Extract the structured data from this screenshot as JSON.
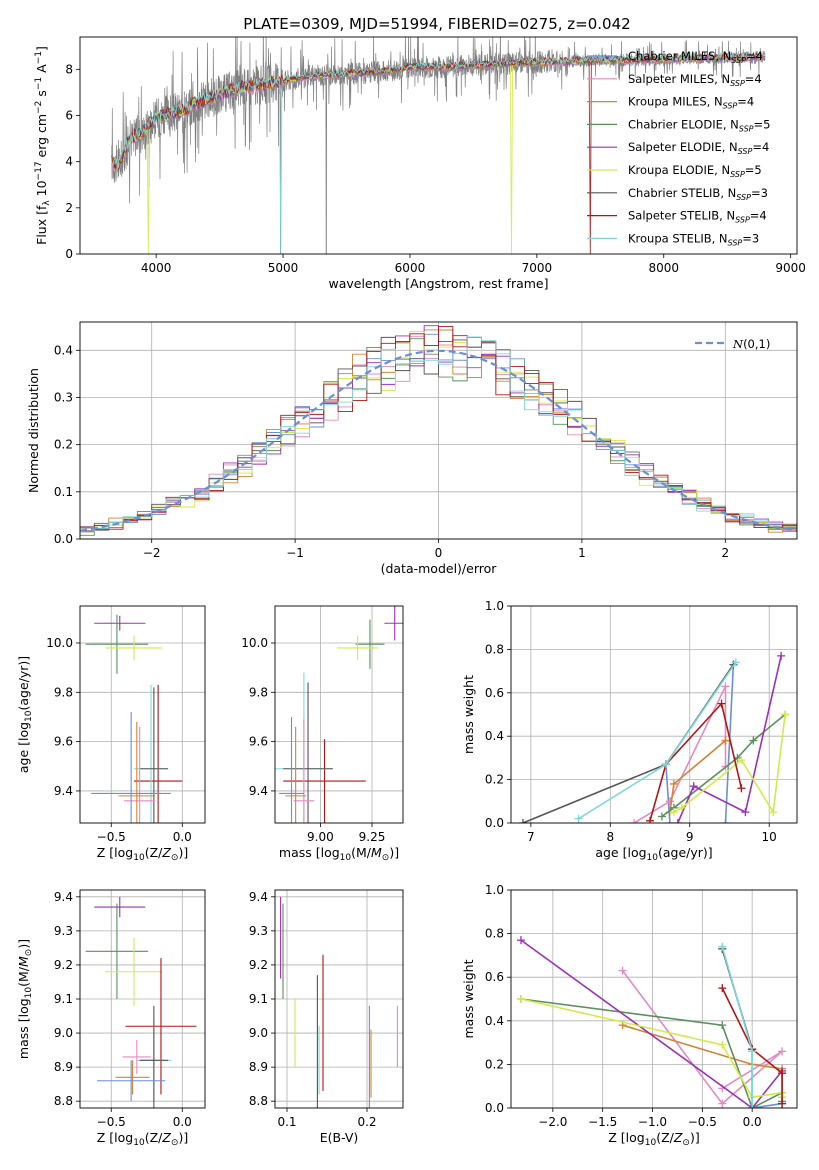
{
  "title": "PLATE=0309, MJD=51994, FIBERID=0275, z=0.042",
  "chart_data": [
    {
      "type": "line",
      "name": "spectrum",
      "xlabel": "wavelength [Angstrom, rest frame]",
      "ylabel": "Flux [f_λ 10^-17 erg cm^-2 s^-1 A^-1]",
      "xlim": [
        3400,
        9050
      ],
      "ylim": [
        0,
        9.4
      ],
      "xticks": [
        4000,
        5000,
        6000,
        7000,
        8000,
        9000
      ],
      "yticks": [
        0,
        2,
        4,
        6,
        8
      ],
      "grid": false,
      "legend_position": "top-right",
      "legend": [
        {
          "label": "Chabrier MILES, N_SSP=4",
          "color": "#6a8fd6"
        },
        {
          "label": "Salpeter MILES, N_SSP=4",
          "color": "#e38ac2"
        },
        {
          "label": "Kroupa MILES, N_SSP=4",
          "color": "#d48234"
        },
        {
          "label": "Chabrier ELODIE, N_SSP=5",
          "color": "#5c8f5e"
        },
        {
          "label": "Salpeter ELODIE, N_SSP=4",
          "color": "#9b30b8"
        },
        {
          "label": "Kroupa ELODIE, N_SSP=5",
          "color": "#d2ea4a"
        },
        {
          "label": "Chabrier STELIB, N_SSP=3",
          "color": "#555555"
        },
        {
          "label": "Salpeter STELIB, N_SSP=4",
          "color": "#b01515"
        },
        {
          "label": "Kroupa STELIB, N_SSP=3",
          "color": "#7fd8d8"
        }
      ],
      "data_color": "#808080",
      "continuum": [
        [
          3650,
          4.0
        ],
        [
          3700,
          3.8
        ],
        [
          3800,
          5.0
        ],
        [
          3900,
          5.3
        ],
        [
          4000,
          5.9
        ],
        [
          4200,
          6.2
        ],
        [
          4400,
          6.7
        ],
        [
          4600,
          7.1
        ],
        [
          4800,
          7.3
        ],
        [
          5000,
          7.5
        ],
        [
          5200,
          7.7
        ],
        [
          5500,
          7.8
        ],
        [
          5800,
          7.9
        ],
        [
          6000,
          8.1
        ],
        [
          6300,
          8.1
        ],
        [
          6600,
          8.2
        ],
        [
          7000,
          8.3
        ],
        [
          7300,
          8.35
        ],
        [
          7500,
          8.4
        ],
        [
          7800,
          8.4
        ],
        [
          8100,
          8.45
        ],
        [
          8400,
          8.5
        ],
        [
          8600,
          8.5
        ],
        [
          8800,
          8.55
        ]
      ],
      "model_drops": [
        {
          "x": 3940,
          "y": 0.0,
          "series": "Kroupa ELODIE, N_SSP=5"
        },
        {
          "x": 4980,
          "y": 0.0,
          "series": "Kroupa STELIB, N_SSP=3"
        },
        {
          "x": 6800,
          "y": 0.0,
          "series": "Kroupa ELODIE, N_SSP=5"
        },
        {
          "x": 7420,
          "y": 0.0,
          "series": "Salpeter STELIB, N_SSP=4"
        }
      ],
      "data_drops": [
        {
          "x": 4980,
          "y": 0.0
        },
        {
          "x": 5340,
          "y": 0.0
        }
      ]
    },
    {
      "type": "line",
      "name": "residuals",
      "xlabel": "(data-model)/error",
      "ylabel": "Normed distribution",
      "xlim": [
        -2.5,
        2.5
      ],
      "ylim": [
        0,
        0.46
      ],
      "xticks": [
        -2,
        -1,
        0,
        1,
        2
      ],
      "yticks": [
        0.0,
        0.1,
        0.2,
        0.3,
        0.4
      ],
      "grid": true,
      "legend_position": "top-right",
      "legend": [
        {
          "label": "N(0,1)",
          "color": "#6a8fd6"
        }
      ],
      "histogram_bins": 50
    },
    {
      "type": "scatter",
      "name": "age-vs-Z",
      "xlabel": "Z [log10(Z/Z⊙)]",
      "ylabel": "age [log10(age/yr)]",
      "xlim": [
        -0.72,
        0.16
      ],
      "ylim": [
        9.27,
        10.15
      ],
      "xticks": [
        -0.5,
        0.0
      ],
      "yticks": [
        9.4,
        9.6,
        9.8,
        10.0
      ],
      "grid": true,
      "points": [
        {
          "x": -0.44,
          "y": 10.08,
          "xerr": 0.18,
          "yerr": 0.03,
          "series": "Salpeter ELODIE, N_SSP=4"
        },
        {
          "x": -0.46,
          "y": 9.995,
          "xerr": 0.22,
          "yerr": 0.12,
          "series": "Chabrier ELODIE, N_SSP=5"
        },
        {
          "x": -0.34,
          "y": 9.98,
          "xerr": 0.2,
          "yerr": 0.05,
          "series": "Kroupa ELODIE, N_SSP=5"
        },
        {
          "x": -0.17,
          "y": 9.44,
          "xerr": 0.17,
          "yerr": 0.39,
          "series": "Salpeter STELIB, N_SSP=4"
        },
        {
          "x": -0.22,
          "y": 9.49,
          "xerr": 0.12,
          "yerr": 0.34,
          "series": "Kroupa STELIB, N_SSP=3"
        },
        {
          "x": -0.2,
          "y": 9.49,
          "xerr": 0.1,
          "yerr": 0.33,
          "series": "Chabrier STELIB, N_SSP=3"
        },
        {
          "x": -0.3,
          "y": 9.36,
          "xerr": 0.11,
          "yerr": 0.3,
          "series": "Salpeter MILES, N_SSP=4"
        },
        {
          "x": -0.32,
          "y": 9.38,
          "xerr": 0.13,
          "yerr": 0.3,
          "series": "Kroupa MILES, N_SSP=4"
        },
        {
          "x": -0.36,
          "y": 9.39,
          "xerr": 0.28,
          "yerr": 0.33,
          "series": "Chabrier MILES, N_SSP=4"
        }
      ]
    },
    {
      "type": "scatter",
      "name": "age-vs-mass",
      "xlabel": "mass [log10(M/M⊙)]",
      "ylabel": "",
      "xlim": [
        8.78,
        9.4
      ],
      "ylim": [
        9.27,
        10.15
      ],
      "xticks": [
        9.0,
        9.25
      ],
      "yticks": [
        9.4,
        9.6,
        9.8,
        10.0
      ],
      "grid": true,
      "points": [
        {
          "x": 9.36,
          "y": 10.08,
          "xerr": 0.05,
          "yerr": 0.07,
          "series": "Salpeter ELODIE, N_SSP=4"
        },
        {
          "x": 9.24,
          "y": 9.995,
          "xerr": 0.07,
          "yerr": 0.1,
          "series": "Chabrier ELODIE, N_SSP=5"
        },
        {
          "x": 9.18,
          "y": 9.98,
          "xerr": 0.1,
          "yerr": 0.05,
          "series": "Kroupa ELODIE, N_SSP=5"
        },
        {
          "x": 9.02,
          "y": 9.44,
          "xerr": 0.2,
          "yerr": 0.17,
          "series": "Salpeter STELIB, N_SSP=4"
        },
        {
          "x": 8.92,
          "y": 9.49,
          "xerr": 0.14,
          "yerr": 0.39,
          "series": "Kroupa STELIB, N_SSP=3"
        },
        {
          "x": 8.94,
          "y": 9.49,
          "xerr": 0.12,
          "yerr": 0.35,
          "series": "Chabrier STELIB, N_SSP=3"
        },
        {
          "x": 8.92,
          "y": 9.36,
          "xerr": 0.05,
          "yerr": 0.33,
          "series": "Salpeter MILES, N_SSP=4"
        },
        {
          "x": 8.88,
          "y": 9.38,
          "xerr": 0.05,
          "yerr": 0.28,
          "series": "Kroupa MILES, N_SSP=4"
        },
        {
          "x": 8.86,
          "y": 9.39,
          "xerr": 0.06,
          "yerr": 0.31,
          "series": "Chabrier MILES, N_SSP=4"
        }
      ]
    },
    {
      "type": "line",
      "name": "mass-weight-vs-age",
      "xlabel": "age [log10(age/yr)]",
      "ylabel": "mass weight",
      "xlim": [
        6.75,
        10.35
      ],
      "ylim": [
        0,
        1.0
      ],
      "xticks": [
        7,
        8,
        9,
        10
      ],
      "yticks": [
        0.0,
        0.2,
        0.4,
        0.6,
        0.8,
        1.0
      ],
      "grid": true,
      "series": [
        {
          "name": "Chabrier MILES, N_SSP=4",
          "color": "#6a8fd6",
          "x": [
            8.75,
            8.7,
            9.55,
            9.45
          ],
          "y": [
            0.0,
            0.27,
            0.73,
            0.0
          ]
        },
        {
          "name": "Salpeter MILES, N_SSP=4",
          "color": "#e38ac2",
          "x": [
            8.3,
            8.75,
            9.45,
            9.45
          ],
          "y": [
            0.0,
            0.1,
            0.63,
            0.26
          ]
        },
        {
          "name": "Kroupa MILES, N_SSP=4",
          "color": "#d48234",
          "x": [
            8.75,
            8.8,
            9.45,
            9.45
          ],
          "y": [
            0.05,
            0.18,
            0.38,
            0.38
          ]
        },
        {
          "name": "Chabrier ELODIE, N_SSP=5",
          "color": "#5c8f5e",
          "x": [
            8.65,
            8.8,
            9.6,
            9.8,
            10.2
          ],
          "y": [
            0.03,
            0.07,
            0.3,
            0.38,
            0.5
          ]
        },
        {
          "name": "Salpeter ELODIE, N_SSP=4",
          "color": "#9b30b8",
          "x": [
            8.85,
            9.05,
            9.7,
            10.15
          ],
          "y": [
            0.0,
            0.17,
            0.05,
            0.77
          ]
        },
        {
          "name": "Kroupa ELODIE, N_SSP=5",
          "color": "#d2ea4a",
          "x": [
            8.8,
            8.9,
            9.65,
            10.05,
            10.2
          ],
          "y": [
            0.05,
            0.07,
            0.29,
            0.05,
            0.5
          ]
        },
        {
          "name": "Chabrier STELIB, N_SSP=3",
          "color": "#555555",
          "x": [
            6.9,
            8.7,
            9.55
          ],
          "y": [
            0.0,
            0.27,
            0.73
          ]
        },
        {
          "name": "Salpeter STELIB, N_SSP=4",
          "color": "#b01515",
          "x": [
            8.5,
            8.7,
            9.4,
            9.65
          ],
          "y": [
            0.01,
            0.27,
            0.55,
            0.16
          ]
        },
        {
          "name": "Kroupa STELIB, N_SSP=3",
          "color": "#7fd8d8",
          "x": [
            7.6,
            8.7,
            9.58
          ],
          "y": [
            0.02,
            0.27,
            0.74
          ]
        }
      ]
    },
    {
      "type": "scatter",
      "name": "mass-vs-Z",
      "xlabel": "Z [log10(Z/Z⊙)]",
      "ylabel": "mass [log10(M/M⊙)]",
      "xlim": [
        -0.72,
        0.16
      ],
      "ylim": [
        8.78,
        9.42
      ],
      "xticks": [
        -0.5,
        0.0
      ],
      "yticks": [
        8.8,
        8.9,
        9.0,
        9.1,
        9.2,
        9.3,
        9.4
      ],
      "grid": true,
      "points": [
        {
          "x": -0.44,
          "y": 9.37,
          "xerr": 0.18,
          "yerr": 0.03,
          "series": "Salpeter ELODIE, N_SSP=4"
        },
        {
          "x": -0.46,
          "y": 9.24,
          "xerr": 0.22,
          "yerr": 0.14,
          "series": "Chabrier ELODIE, N_SSP=5"
        },
        {
          "x": -0.34,
          "y": 9.18,
          "xerr": 0.2,
          "yerr": 0.1,
          "series": "Kroupa ELODIE, N_SSP=5"
        },
        {
          "x": -0.15,
          "y": 9.02,
          "xerr": 0.25,
          "yerr": 0.2,
          "series": "Salpeter STELIB, N_SSP=4"
        },
        {
          "x": -0.2,
          "y": 8.92,
          "xerr": 0.12,
          "yerr": 0.12,
          "series": "Kroupa STELIB, N_SSP=3"
        },
        {
          "x": -0.2,
          "y": 8.92,
          "xerr": 0.1,
          "yerr": 0.16,
          "series": "Chabrier STELIB, N_SSP=3"
        },
        {
          "x": -0.32,
          "y": 8.93,
          "xerr": 0.1,
          "yerr": 0.05,
          "series": "Salpeter MILES, N_SSP=4"
        },
        {
          "x": -0.35,
          "y": 8.87,
          "xerr": 0.12,
          "yerr": 0.05,
          "series": "Kroupa MILES, N_SSP=4"
        },
        {
          "x": -0.36,
          "y": 8.86,
          "xerr": 0.24,
          "yerr": 0.06,
          "series": "Chabrier MILES, N_SSP=4"
        }
      ]
    },
    {
      "type": "scatter",
      "name": "mass-vs-EBV",
      "xlabel": "E(B-V)",
      "ylabel": "",
      "xlim": [
        0.085,
        0.245
      ],
      "ylim": [
        8.78,
        9.42
      ],
      "xticks": [
        0.1,
        0.2
      ],
      "yticks": [
        8.8,
        8.9,
        9.0,
        9.1,
        9.2,
        9.3,
        9.4
      ],
      "grid": true,
      "points": [
        {
          "x": 0.092,
          "y": 9.28,
          "xerr": 0,
          "yerr": 0.12,
          "series": "Salpeter ELODIE, N_SSP=4"
        },
        {
          "x": 0.095,
          "y": 9.24,
          "xerr": 0,
          "yerr": 0.14,
          "series": "Chabrier ELODIE, N_SSP=5"
        },
        {
          "x": 0.11,
          "y": 9.0,
          "xerr": 0,
          "yerr": 0.1,
          "series": "Kroupa ELODIE, N_SSP=5"
        },
        {
          "x": 0.145,
          "y": 9.03,
          "xerr": 0,
          "yerr": 0.2,
          "series": "Salpeter STELIB, N_SSP=4"
        },
        {
          "x": 0.14,
          "y": 8.92,
          "xerr": 0,
          "yerr": 0.1,
          "series": "Kroupa STELIB, N_SSP=3"
        },
        {
          "x": 0.138,
          "y": 8.97,
          "xerr": 0,
          "yerr": 0.2,
          "series": "Chabrier STELIB, N_SSP=3"
        },
        {
          "x": 0.238,
          "y": 8.99,
          "xerr": 0,
          "yerr": 0.09,
          "series": "Salpeter MILES, N_SSP=4"
        },
        {
          "x": 0.205,
          "y": 8.91,
          "xerr": 0,
          "yerr": 0.1,
          "series": "Kroupa MILES, N_SSP=4"
        },
        {
          "x": 0.203,
          "y": 8.93,
          "xerr": 0,
          "yerr": 0.15,
          "series": "Chabrier MILES, N_SSP=4"
        }
      ]
    },
    {
      "type": "line",
      "name": "mass-weight-vs-Z",
      "xlabel": "Z [log10(Z/Z⊙)]",
      "ylabel": "mass weight",
      "xlim": [
        -2.42,
        0.45
      ],
      "ylim": [
        0,
        1.0
      ],
      "xticks": [
        -2.0,
        -1.5,
        -1.0,
        -0.5,
        0.0
      ],
      "yticks": [
        0.0,
        0.2,
        0.4,
        0.6,
        0.8,
        1.0
      ],
      "grid": true,
      "series": [
        {
          "name": "Chabrier MILES, N_SSP=4",
          "color": "#6a8fd6",
          "x": [
            -0.3,
            0.0,
            0.0,
            0.3
          ],
          "y": [
            0.73,
            0.27,
            0.0,
            0.02
          ]
        },
        {
          "name": "Salpeter MILES, N_SSP=4",
          "color": "#e38ac2",
          "x": [
            -1.3,
            -0.3,
            0.3,
            -0.3
          ],
          "y": [
            0.63,
            0.02,
            0.26,
            0.09
          ]
        },
        {
          "name": "Kroupa MILES, N_SSP=4",
          "color": "#d48234",
          "x": [
            -1.3,
            0.0,
            0.3,
            0.3
          ],
          "y": [
            0.38,
            0.2,
            0.18,
            0.05
          ]
        },
        {
          "name": "Chabrier ELODIE, N_SSP=5",
          "color": "#5c8f5e",
          "x": [
            -2.32,
            -0.3,
            0.0,
            0.3,
            0.3
          ],
          "y": [
            0.5,
            0.38,
            0.0,
            0.07,
            0.03
          ]
        },
        {
          "name": "Salpeter ELODIE, N_SSP=4",
          "color": "#9b30b8",
          "x": [
            -2.32,
            0.0,
            0.3,
            0.3
          ],
          "y": [
            0.77,
            0.0,
            0.17,
            0.16
          ]
        },
        {
          "name": "Kroupa ELODIE, N_SSP=5",
          "color": "#d2ea4a",
          "x": [
            -2.32,
            -0.3,
            0.0,
            0.3,
            0.3
          ],
          "y": [
            0.5,
            0.29,
            0.05,
            0.07,
            0.05
          ]
        },
        {
          "name": "Chabrier STELIB, N_SSP=3",
          "color": "#555555",
          "x": [
            -0.3,
            0.0,
            0.0
          ],
          "y": [
            0.73,
            0.27,
            0.0
          ]
        },
        {
          "name": "Salpeter STELIB, N_SSP=4",
          "color": "#b01515",
          "x": [
            -0.3,
            0.0,
            0.3,
            0.3
          ],
          "y": [
            0.55,
            0.27,
            0.16,
            0.02
          ]
        },
        {
          "name": "Kroupa STELIB, N_SSP=3",
          "color": "#7fd8d8",
          "x": [
            -0.3,
            0.0,
            0.0
          ],
          "y": [
            0.74,
            0.26,
            0.0
          ]
        }
      ]
    }
  ]
}
